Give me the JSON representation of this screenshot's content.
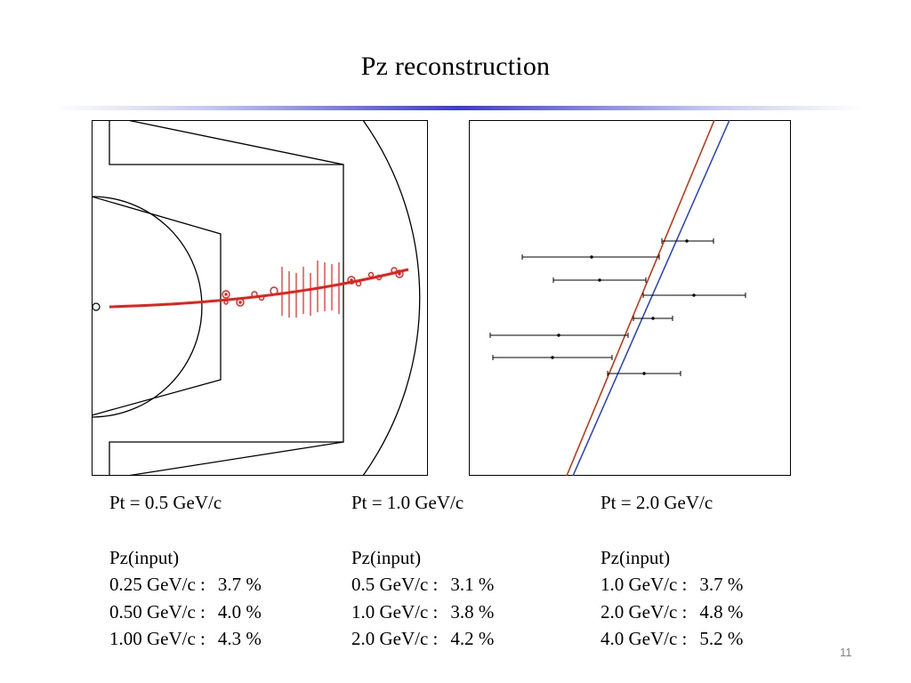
{
  "slide": {
    "title": "Pz reconstruction",
    "page_number": "11"
  },
  "colors": {
    "track": "#e8201c",
    "fit_red": "#d12a00",
    "fit_blue": "#1f3fd6",
    "divider": "#3b3bd8"
  },
  "columns": [
    {
      "pt": "Pt = 0.5 GeV/c",
      "pz_header": "Pz(input)",
      "rows": [
        {
          "pz": "0.25 GeV/c :",
          "resolution": "3.7 %"
        },
        {
          "pz": "0.50 GeV/c :",
          "resolution": "4.0 %"
        },
        {
          "pz": "1.00 GeV/c :",
          "resolution": "4.3 %"
        }
      ]
    },
    {
      "pt": "Pt = 1.0 GeV/c",
      "pz_header": "Pz(input)",
      "rows": [
        {
          "pz": "0.5 GeV/c :",
          "resolution": "3.1 %"
        },
        {
          "pz": "1.0 GeV/c :",
          "resolution": "3.8 %"
        },
        {
          "pz": "2.0 GeV/c :",
          "resolution": "4.2 %"
        }
      ]
    },
    {
      "pt": "Pt = 2.0 GeV/c",
      "pz_header": "Pz(input)",
      "rows": [
        {
          "pz": "1.0 GeV/c :",
          "resolution": "3.7 %"
        },
        {
          "pz": "2.0 GeV/c :",
          "resolution": "4.8 %"
        },
        {
          "pz": "4.0 GeV/c :",
          "resolution": "5.2 %"
        }
      ]
    }
  ]
}
